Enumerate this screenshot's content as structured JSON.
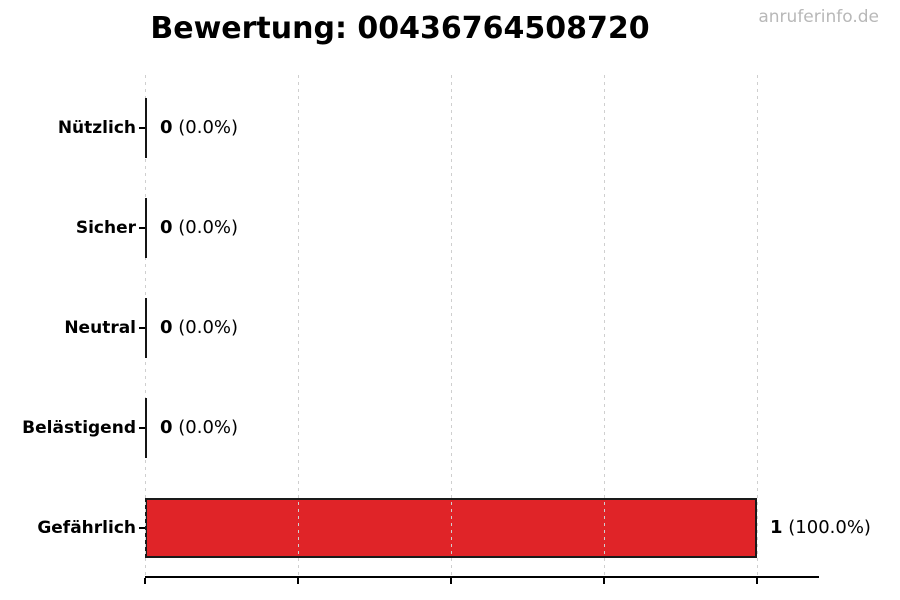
{
  "watermark": "anruferinfo.de",
  "chart_data": {
    "type": "bar",
    "orientation": "horizontal",
    "title": "Bewertung: 00436764508720",
    "categories": [
      "Nützlich",
      "Sicher",
      "Neutral",
      "Belästigend",
      "Gefährlich"
    ],
    "values": [
      0,
      0,
      0,
      0,
      1
    ],
    "counts": [
      "0",
      "0",
      "0",
      "0",
      "1"
    ],
    "percent_labels": [
      "(0.0%)",
      "(0.0%)",
      "(0.0%)",
      "(0.0%)",
      "(100.0%)"
    ],
    "value_annotations": [
      "0 (0.0%)",
      "0 (0.0%)",
      "0 (0.0%)",
      "0 (0.0%)",
      "1 (100.0%)"
    ],
    "xlim": [
      0,
      1.1
    ],
    "xticks": [
      0,
      0.25,
      0.5,
      0.75,
      1.0
    ],
    "xtick_labels_visible": false,
    "grid": {
      "axis": "x",
      "style": "dashed",
      "color": "#cfcfcf"
    },
    "legend": "none",
    "colors": {
      "bar_fill": "#e02428",
      "bar_edge": "#1a1a1a",
      "zero_bar_stroke": "#151515",
      "axis": "#000000",
      "text": "#000000",
      "watermark": "#b8b8b8",
      "background": "#ffffff"
    }
  }
}
